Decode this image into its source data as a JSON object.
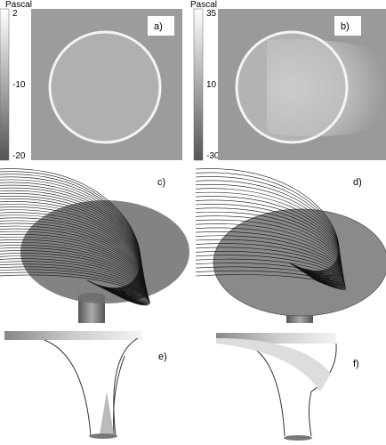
{
  "panels": [
    {
      "label": "a)",
      "colorbar": {
        "unit": "Pascal",
        "ticks": [
          2,
          -10,
          -20
        ]
      }
    },
    {
      "label": "b)",
      "colorbar": {
        "unit": "Pascal",
        "ticks": [
          35,
          10,
          -30
        ]
      }
    },
    {
      "label": "c)"
    },
    {
      "label": "d)"
    },
    {
      "label": "e)"
    },
    {
      "label": "f)"
    }
  ]
}
